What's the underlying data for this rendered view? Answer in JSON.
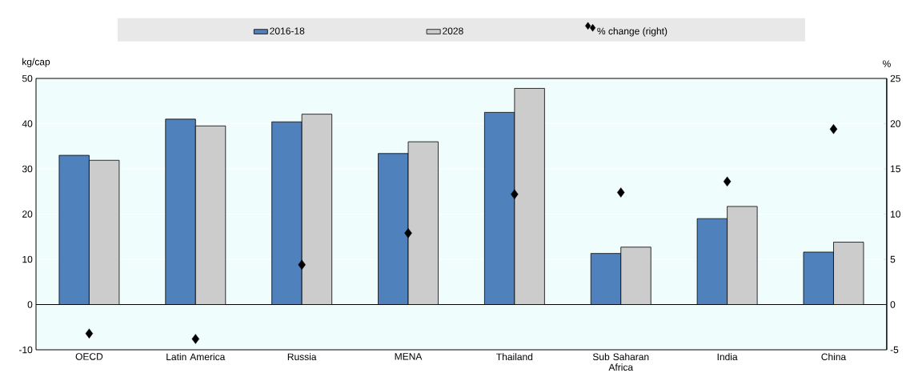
{
  "chart_data": {
    "type": "bar",
    "categories": [
      "OECD",
      "Latin America",
      "Russia",
      "MENA",
      "Thailand",
      "Sub Saharan Africa",
      "India",
      "China"
    ],
    "ylabel": "kg/cap",
    "y2label": "%",
    "ylim": [
      -10,
      50
    ],
    "yticks": [
      -10,
      0,
      10,
      20,
      30,
      40,
      50
    ],
    "y2lim": [
      -5,
      25
    ],
    "y2ticks": [
      -5,
      0,
      5,
      10,
      15,
      20,
      25
    ],
    "grid": "y",
    "legend": "top",
    "series": [
      {
        "name": "2016-18",
        "color": "#4f81bd",
        "values": [
          33.0,
          41.0,
          40.4,
          33.4,
          42.5,
          11.3,
          19.0,
          11.6
        ]
      },
      {
        "name": "2028",
        "color": "#cccccc",
        "values": [
          31.9,
          39.5,
          42.1,
          36.0,
          47.8,
          12.7,
          21.7,
          13.8
        ]
      },
      {
        "name": "% change (right)",
        "type": "scatter",
        "axis": "y2",
        "marker": "diamond",
        "color": "#000000",
        "values": [
          -3.2,
          -3.8,
          4.4,
          7.9,
          12.2,
          12.4,
          13.6,
          19.4
        ]
      }
    ]
  }
}
